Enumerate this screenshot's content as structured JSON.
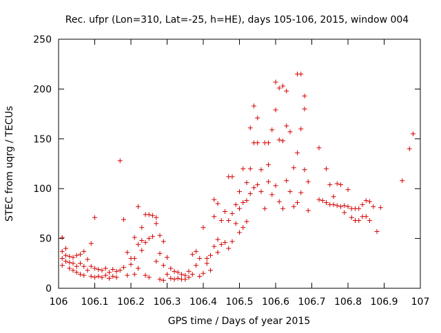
{
  "chart_data": {
    "type": "scatter",
    "title": "Rec. ufpr (Lon=310, Lat=-25, h=HE), days 105-106, 2015, window 004",
    "xlabel": "GPS time / Days of year 2015",
    "ylabel": "STEC from uqrg / TECUs",
    "xlim": [
      106,
      107
    ],
    "ylim": [
      0,
      250
    ],
    "x_ticks": [
      106,
      106.1,
      106.2,
      106.3,
      106.4,
      106.5,
      106.6,
      106.7,
      106.8,
      106.9,
      107
    ],
    "x_tick_labels": [
      "106",
      "106.1",
      "106.2",
      "106.3",
      "106.4",
      "106.5",
      "106.6",
      "106.7",
      "106.8",
      "106.9",
      "107"
    ],
    "y_ticks": [
      0,
      50,
      100,
      150,
      200,
      250
    ],
    "y_tick_labels": [
      "0",
      "50",
      "100",
      "150",
      "200",
      "250"
    ],
    "grid": false,
    "marker": "plus",
    "color": "#d40000",
    "points": [
      [
        106.01,
        51
      ],
      [
        106.01,
        37
      ],
      [
        106.01,
        30
      ],
      [
        106.01,
        23
      ],
      [
        106.02,
        40
      ],
      [
        106.02,
        33
      ],
      [
        106.02,
        27
      ],
      [
        106.03,
        32
      ],
      [
        106.03,
        26
      ],
      [
        106.03,
        20
      ],
      [
        106.04,
        31
      ],
      [
        106.04,
        25
      ],
      [
        106.04,
        18
      ],
      [
        106.05,
        33
      ],
      [
        106.05,
        22
      ],
      [
        106.05,
        16
      ],
      [
        106.06,
        34
      ],
      [
        106.06,
        25
      ],
      [
        106.06,
        14
      ],
      [
        106.07,
        37
      ],
      [
        106.07,
        22
      ],
      [
        106.07,
        13
      ],
      [
        106.08,
        29
      ],
      [
        106.08,
        18
      ],
      [
        106.09,
        45
      ],
      [
        106.09,
        22
      ],
      [
        106.09,
        12
      ],
      [
        106.1,
        71
      ],
      [
        106.1,
        20
      ],
      [
        106.1,
        11
      ],
      [
        106.11,
        19
      ],
      [
        106.11,
        12
      ],
      [
        106.12,
        18
      ],
      [
        106.12,
        11
      ],
      [
        106.13,
        20
      ],
      [
        106.13,
        13
      ],
      [
        106.14,
        16
      ],
      [
        106.14,
        10
      ],
      [
        106.15,
        19
      ],
      [
        106.15,
        12
      ],
      [
        106.16,
        17
      ],
      [
        106.16,
        11
      ],
      [
        106.17,
        128
      ],
      [
        106.17,
        18
      ],
      [
        106.18,
        69
      ],
      [
        106.18,
        21
      ],
      [
        106.19,
        36
      ],
      [
        106.19,
        13
      ],
      [
        106.2,
        30
      ],
      [
        106.2,
        24
      ],
      [
        106.21,
        51
      ],
      [
        106.21,
        30
      ],
      [
        106.21,
        14
      ],
      [
        106.22,
        82
      ],
      [
        106.22,
        44
      ],
      [
        106.22,
        20
      ],
      [
        106.23,
        61
      ],
      [
        106.23,
        48
      ],
      [
        106.23,
        38
      ],
      [
        106.24,
        74
      ],
      [
        106.24,
        46
      ],
      [
        106.24,
        13
      ],
      [
        106.25,
        74
      ],
      [
        106.25,
        50
      ],
      [
        106.25,
        11
      ],
      [
        106.26,
        73
      ],
      [
        106.26,
        52
      ],
      [
        106.27,
        71
      ],
      [
        106.27,
        65
      ],
      [
        106.27,
        27
      ],
      [
        106.28,
        53
      ],
      [
        106.28,
        35
      ],
      [
        106.28,
        9
      ],
      [
        106.29,
        47
      ],
      [
        106.29,
        23
      ],
      [
        106.29,
        8
      ],
      [
        106.3,
        31
      ],
      [
        106.3,
        14
      ],
      [
        106.31,
        20
      ],
      [
        106.31,
        10
      ],
      [
        106.32,
        17
      ],
      [
        106.32,
        9
      ],
      [
        106.33,
        16
      ],
      [
        106.33,
        10
      ],
      [
        106.34,
        14
      ],
      [
        106.34,
        9
      ],
      [
        106.35,
        13
      ],
      [
        106.35,
        9
      ],
      [
        106.36,
        17
      ],
      [
        106.36,
        11
      ],
      [
        106.37,
        34
      ],
      [
        106.37,
        14
      ],
      [
        106.38,
        37
      ],
      [
        106.38,
        23
      ],
      [
        106.39,
        30
      ],
      [
        106.39,
        12
      ],
      [
        106.4,
        61
      ],
      [
        106.4,
        15
      ],
      [
        106.41,
        30
      ],
      [
        106.41,
        25
      ],
      [
        106.42,
        33
      ],
      [
        106.42,
        18
      ],
      [
        106.43,
        89
      ],
      [
        106.43,
        72
      ],
      [
        106.43,
        42
      ],
      [
        106.44,
        85
      ],
      [
        106.44,
        49
      ],
      [
        106.44,
        36
      ],
      [
        106.45,
        68
      ],
      [
        106.45,
        44
      ],
      [
        106.46,
        77
      ],
      [
        106.46,
        46
      ],
      [
        106.47,
        112
      ],
      [
        106.47,
        68
      ],
      [
        106.47,
        40
      ],
      [
        106.48,
        112
      ],
      [
        106.48,
        75
      ],
      [
        106.48,
        47
      ],
      [
        106.49,
        84
      ],
      [
        106.49,
        65
      ],
      [
        106.5,
        97
      ],
      [
        106.5,
        80
      ],
      [
        106.5,
        56
      ],
      [
        106.51,
        120
      ],
      [
        106.51,
        86
      ],
      [
        106.51,
        61
      ],
      [
        106.52,
        106
      ],
      [
        106.52,
        88
      ],
      [
        106.52,
        67
      ],
      [
        106.53,
        161
      ],
      [
        106.53,
        120
      ],
      [
        106.53,
        95
      ],
      [
        106.54,
        183
      ],
      [
        106.54,
        146
      ],
      [
        106.54,
        101
      ],
      [
        106.55,
        171
      ],
      [
        106.55,
        146
      ],
      [
        106.55,
        104
      ],
      [
        106.56,
        119
      ],
      [
        106.56,
        97
      ],
      [
        106.57,
        146
      ],
      [
        106.57,
        80
      ],
      [
        106.58,
        124
      ],
      [
        106.58,
        146
      ],
      [
        106.58,
        107
      ],
      [
        106.59,
        159
      ],
      [
        106.59,
        94
      ],
      [
        106.6,
        207
      ],
      [
        106.6,
        179
      ],
      [
        106.6,
        103
      ],
      [
        106.61,
        201
      ],
      [
        106.61,
        149
      ],
      [
        106.61,
        87
      ],
      [
        106.62,
        203
      ],
      [
        106.62,
        148
      ],
      [
        106.62,
        80
      ],
      [
        106.63,
        198
      ],
      [
        106.63,
        163
      ],
      [
        106.63,
        108
      ],
      [
        106.64,
        157
      ],
      [
        106.64,
        97
      ],
      [
        106.65,
        121
      ],
      [
        106.65,
        82
      ],
      [
        106.66,
        215
      ],
      [
        106.66,
        136
      ],
      [
        106.66,
        86
      ],
      [
        106.67,
        215
      ],
      [
        106.67,
        160
      ],
      [
        106.67,
        96
      ],
      [
        106.68,
        193
      ],
      [
        106.68,
        180
      ],
      [
        106.68,
        119
      ],
      [
        106.69,
        107
      ],
      [
        106.69,
        78
      ],
      [
        106.72,
        141
      ],
      [
        106.72,
        89
      ],
      [
        106.73,
        88
      ],
      [
        106.74,
        120
      ],
      [
        106.74,
        86
      ],
      [
        106.75,
        104
      ],
      [
        106.75,
        84
      ],
      [
        106.76,
        92
      ],
      [
        106.76,
        84
      ],
      [
        106.77,
        105
      ],
      [
        106.77,
        83
      ],
      [
        106.78,
        104
      ],
      [
        106.78,
        82
      ],
      [
        106.79,
        83
      ],
      [
        106.79,
        76
      ],
      [
        106.8,
        99
      ],
      [
        106.8,
        82
      ],
      [
        106.81,
        80
      ],
      [
        106.81,
        71
      ],
      [
        106.82,
        80
      ],
      [
        106.82,
        68
      ],
      [
        106.83,
        80
      ],
      [
        106.83,
        68
      ],
      [
        106.84,
        84
      ],
      [
        106.84,
        72
      ],
      [
        106.85,
        88
      ],
      [
        106.85,
        72
      ],
      [
        106.86,
        87
      ],
      [
        106.86,
        68
      ],
      [
        106.87,
        82
      ],
      [
        106.88,
        57
      ],
      [
        106.89,
        81
      ],
      [
        106.95,
        108
      ],
      [
        106.97,
        140
      ],
      [
        106.98,
        155
      ]
    ]
  }
}
